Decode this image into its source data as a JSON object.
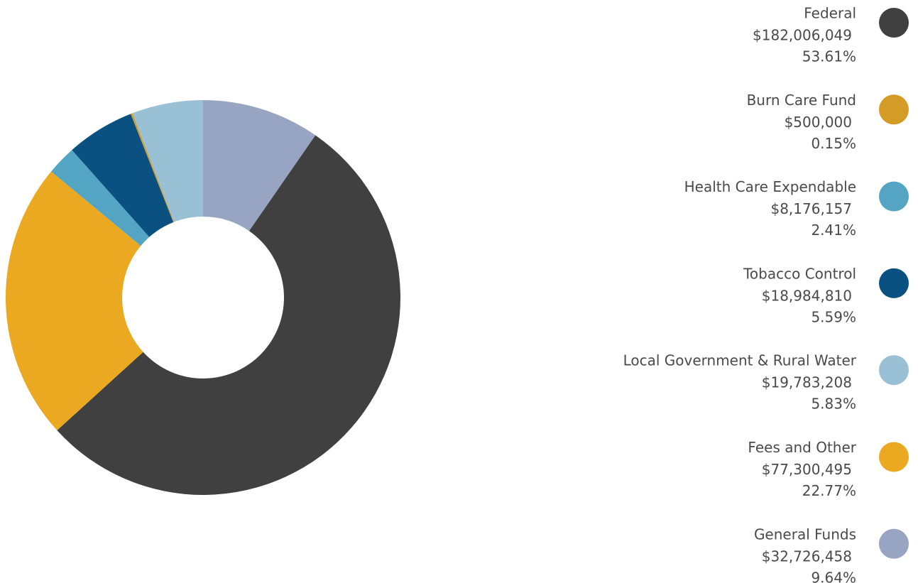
{
  "chart_data": {
    "type": "donut",
    "categories": [
      "Federal",
      "Burn Care Fund",
      "Health Care Expendable",
      "Tobacco Control",
      "Local Government & Rural Water",
      "Fees and Other",
      "General Funds"
    ],
    "values": [
      182006049,
      500000,
      8176157,
      18984810,
      19783208,
      77300495,
      32726458
    ],
    "value_labels": [
      "$182,006,049",
      "$500,000",
      "$8,176,157",
      "$18,984,810",
      "$19,783,208",
      "$77,300,495",
      "$32,726,458"
    ],
    "percentages": [
      53.61,
      0.15,
      2.41,
      5.59,
      5.83,
      22.77,
      9.64
    ],
    "percentage_labels": [
      "53.61%",
      "0.15%",
      "2.41%",
      "5.59%",
      "5.83%",
      "22.77%",
      "9.64%"
    ],
    "colors": [
      "#404040",
      "#d49b27",
      "#54a5c4",
      "#0a5080",
      "#9ac0d6",
      "#eaa921",
      "#98a5c2"
    ],
    "legend": "right"
  }
}
